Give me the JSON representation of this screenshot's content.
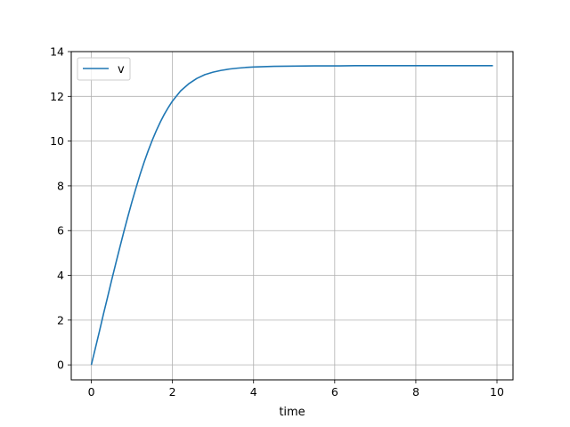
{
  "chart_data": {
    "type": "line",
    "title": "",
    "xlabel": "time",
    "ylabel": "",
    "xlim": [
      -0.495,
      10.395
    ],
    "ylim": [
      -0.67,
      14
    ],
    "xticks": [
      0,
      2,
      4,
      6,
      8,
      10
    ],
    "yticks": [
      0,
      2,
      4,
      6,
      8,
      10,
      12,
      14
    ],
    "grid": true,
    "legend_position": "upper-left",
    "series": [
      {
        "name": "v",
        "color": "#1f77b4",
        "x": [
          0,
          0.1,
          0.2,
          0.3,
          0.4,
          0.5,
          0.6,
          0.7,
          0.8,
          0.9,
          1.0,
          1.1,
          1.2,
          1.3,
          1.4,
          1.5,
          1.6,
          1.7,
          1.8,
          1.9,
          2.0,
          2.2,
          2.4,
          2.6,
          2.8,
          3.0,
          3.2,
          3.4,
          3.6,
          3.8,
          4.0,
          4.5,
          5.0,
          5.5,
          6.0,
          6.5,
          7.0,
          7.5,
          8.0,
          8.5,
          9.0,
          9.5,
          9.9
        ],
        "y": [
          0,
          0.75,
          1.5,
          2.28,
          3.02,
          3.78,
          4.51,
          5.23,
          5.94,
          6.62,
          7.28,
          7.9,
          8.5,
          9.05,
          9.56,
          10.03,
          10.46,
          10.85,
          11.2,
          11.51,
          11.79,
          12.24,
          12.56,
          12.8,
          12.97,
          13.08,
          13.16,
          13.22,
          13.26,
          13.29,
          13.31,
          13.34,
          13.35,
          13.36,
          13.36,
          13.37,
          13.37,
          13.37,
          13.37,
          13.37,
          13.37,
          13.37,
          13.37
        ]
      }
    ]
  }
}
